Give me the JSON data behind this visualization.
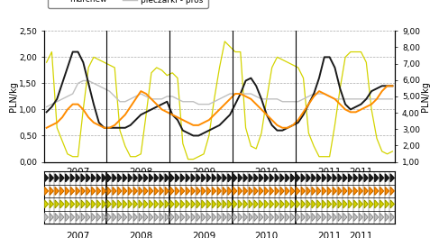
{
  "ylabel_left": "PLN/kg",
  "ylabel_right": "PLN/kg",
  "ylim_left": [
    0.0,
    2.5
  ],
  "ylim_right": [
    1.0,
    9.0
  ],
  "yticks_left": [
    0.0,
    0.5,
    1.0,
    1.5,
    2.0,
    2.5
  ],
  "yticks_right": [
    1.0,
    2.0,
    3.0,
    4.0,
    5.0,
    6.0,
    7.0,
    8.0,
    9.0
  ],
  "ytick_labels_left": [
    "0,00",
    "0,50",
    "1,00",
    "1,50",
    "2,00",
    "2,50"
  ],
  "ytick_labels_right": [
    "1,00",
    "2,00",
    "3,00",
    "4,00",
    "5,00",
    "6,00",
    "7,00",
    "8,00",
    "9,00"
  ],
  "grid_color": "#aaaaaa",
  "bg_color": "#ffffff",
  "n_points": 67,
  "year_labels": [
    "2007",
    "2008",
    "2009",
    "2010",
    "2011"
  ],
  "year_starts": [
    0,
    12,
    24,
    36,
    48
  ],
  "year_mids": [
    6,
    18,
    30,
    42,
    54
  ],
  "color_cebula": "#1a1a1a",
  "color_marchew": "#ff8c00",
  "color_pomidory": "#d4d400",
  "color_pieczarki": "#c0c0c0",
  "cebula": [
    0.95,
    1.05,
    1.2,
    1.5,
    1.8,
    2.1,
    2.1,
    1.9,
    1.5,
    1.1,
    0.75,
    0.65,
    0.65,
    0.65,
    0.65,
    0.65,
    0.7,
    0.8,
    0.9,
    0.95,
    1.0,
    1.05,
    1.1,
    1.15,
    0.9,
    0.8,
    0.6,
    0.55,
    0.5,
    0.5,
    0.55,
    0.6,
    0.65,
    0.7,
    0.8,
    0.9,
    1.1,
    1.3,
    1.55,
    1.6,
    1.45,
    1.2,
    0.9,
    0.7,
    0.6,
    0.6,
    0.65,
    0.7,
    0.75,
    0.9,
    1.1,
    1.3,
    1.6,
    2.0,
    2.0,
    1.8,
    1.4,
    1.1,
    1.0,
    1.05,
    1.1,
    1.2,
    1.35,
    1.4,
    1.45,
    1.45,
    1.45
  ],
  "marchew": [
    0.65,
    0.7,
    0.75,
    0.85,
    1.0,
    1.1,
    1.1,
    1.0,
    0.85,
    0.75,
    0.7,
    0.65,
    0.65,
    0.7,
    0.8,
    0.9,
    1.05,
    1.2,
    1.35,
    1.3,
    1.2,
    1.1,
    1.0,
    0.95,
    0.9,
    0.85,
    0.8,
    0.75,
    0.7,
    0.7,
    0.75,
    0.8,
    0.9,
    1.0,
    1.1,
    1.2,
    1.3,
    1.3,
    1.25,
    1.2,
    1.1,
    1.0,
    0.9,
    0.8,
    0.7,
    0.65,
    0.65,
    0.7,
    0.8,
    0.95,
    1.1,
    1.25,
    1.35,
    1.3,
    1.25,
    1.2,
    1.1,
    1.0,
    0.95,
    0.95,
    1.0,
    1.05,
    1.1,
    1.2,
    1.35,
    1.45,
    1.45
  ],
  "pomidory": [
    1.9,
    2.1,
    0.65,
    0.4,
    0.15,
    0.1,
    0.1,
    1.0,
    1.8,
    2.0,
    1.95,
    1.9,
    1.85,
    1.8,
    0.6,
    0.3,
    0.1,
    0.1,
    0.15,
    0.9,
    1.7,
    1.8,
    1.75,
    1.65,
    1.7,
    1.6,
    0.35,
    0.05,
    0.05,
    0.1,
    0.15,
    0.5,
    1.2,
    1.8,
    2.3,
    2.2,
    2.1,
    2.1,
    0.65,
    0.3,
    0.25,
    0.55,
    1.2,
    1.8,
    2.0,
    1.95,
    1.9,
    1.85,
    1.8,
    1.6,
    0.55,
    0.3,
    0.1,
    0.1,
    0.1,
    0.7,
    1.4,
    2.0,
    2.1,
    2.1,
    2.1,
    1.9,
    1.0,
    0.45,
    0.2,
    0.15,
    0.2
  ],
  "pieczarki": [
    1.05,
    1.1,
    1.15,
    1.2,
    1.25,
    1.3,
    1.5,
    1.55,
    1.55,
    1.5,
    1.45,
    1.4,
    1.35,
    1.25,
    1.15,
    1.15,
    1.2,
    1.25,
    1.3,
    1.25,
    1.2,
    1.2,
    1.2,
    1.25,
    1.25,
    1.2,
    1.15,
    1.15,
    1.15,
    1.1,
    1.1,
    1.1,
    1.15,
    1.2,
    1.25,
    1.3,
    1.3,
    1.3,
    1.3,
    1.3,
    1.25,
    1.2,
    1.2,
    1.2,
    1.2,
    1.15,
    1.15,
    1.15,
    1.15,
    1.2,
    1.25,
    1.3,
    1.3,
    1.3,
    1.25,
    1.2,
    1.2,
    1.2,
    1.2,
    1.2,
    1.2,
    1.2,
    1.2,
    1.2,
    1.2,
    1.2,
    1.2
  ]
}
